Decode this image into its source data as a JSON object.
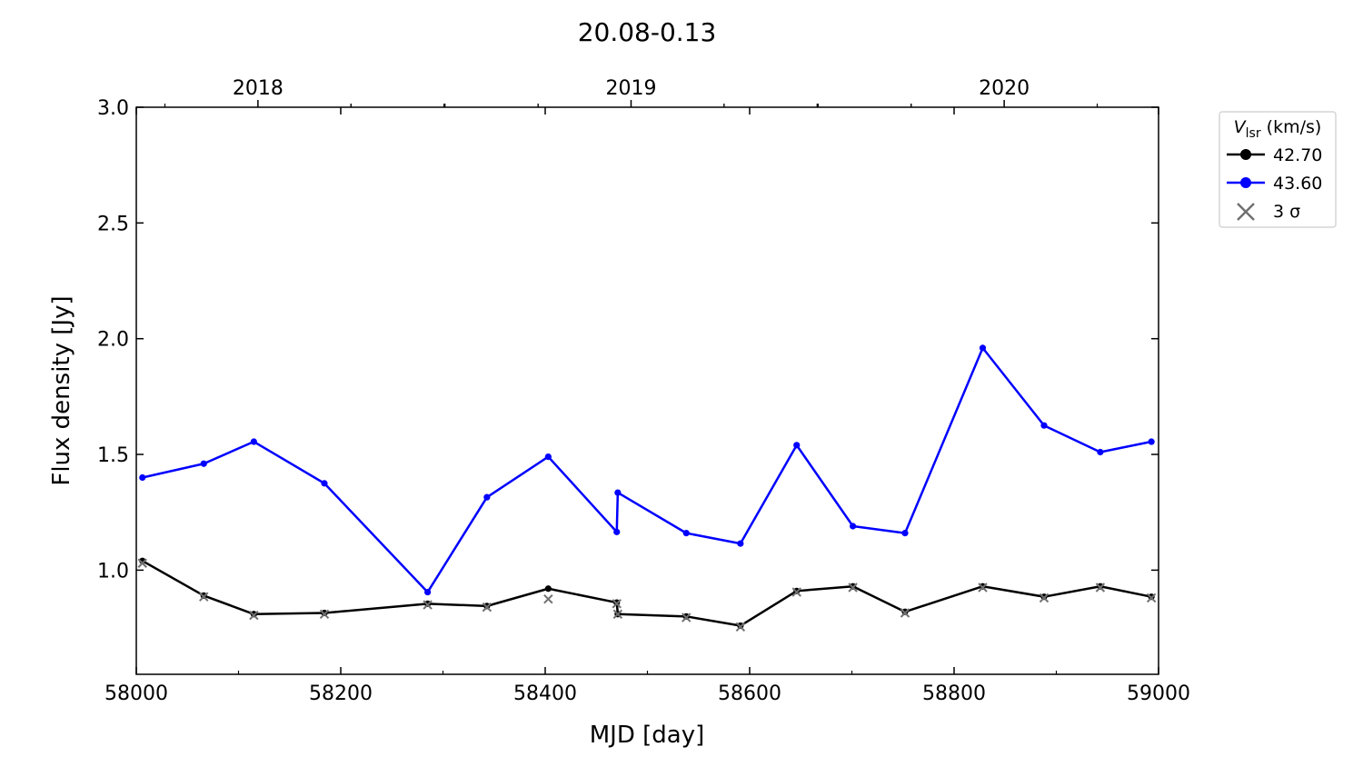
{
  "chart_data": {
    "type": "line",
    "title": "20.08-0.13",
    "xlabel": "MJD [day]",
    "ylabel": "Flux density [Jy]",
    "xlim": [
      58000,
      59000
    ],
    "ylim": [
      0.55,
      3.0
    ],
    "x_ticks": [
      58000,
      58200,
      58400,
      58600,
      58800,
      59000
    ],
    "y_ticks": [
      1.0,
      1.5,
      2.0,
      2.5,
      3.0
    ],
    "y_tick_labels": [
      "1.0",
      "1.5",
      "2.0",
      "2.5",
      "3.0"
    ],
    "top_axis": {
      "ticks": [
        {
          "label": "2018",
          "x": 58119
        },
        {
          "label": "2019",
          "x": 58484
        },
        {
          "label": "2020",
          "x": 58849
        }
      ]
    },
    "grid": false,
    "legend": {
      "title_main": "V",
      "title_sub": "lsr",
      "title_unit": " (km/s)",
      "placement": "outside-right",
      "sigma_label": "3 σ"
    },
    "series": [
      {
        "name": "42.70",
        "color": "#000000",
        "x": [
          58006,
          58066,
          58115,
          58184,
          58285,
          58343,
          58403,
          58470,
          58471,
          58538,
          58591,
          58646,
          58701,
          58752,
          58828,
          58888,
          58943,
          58993
        ],
        "y": [
          1.04,
          0.89,
          0.81,
          0.815,
          0.855,
          0.845,
          0.92,
          0.86,
          0.81,
          0.8,
          0.76,
          0.91,
          0.93,
          0.82,
          0.93,
          0.885,
          0.93,
          0.885
        ]
      },
      {
        "name": "43.60",
        "color": "#0000ff",
        "x": [
          58006,
          58066,
          58115,
          58184,
          58285,
          58343,
          58403,
          58470,
          58471,
          58538,
          58591,
          58646,
          58701,
          58752,
          58828,
          58888,
          58943,
          58993
        ],
        "y": [
          1.4,
          1.46,
          1.555,
          1.375,
          0.905,
          1.315,
          1.49,
          1.165,
          1.335,
          1.16,
          1.115,
          1.54,
          1.19,
          1.16,
          1.96,
          1.625,
          1.51,
          1.555
        ]
      }
    ],
    "sigma_points": {
      "name": "3 σ",
      "color": "#707070",
      "x": [
        58006,
        58066,
        58115,
        58184,
        58285,
        58343,
        58403,
        58470,
        58471,
        58538,
        58591,
        58646,
        58701,
        58752,
        58828,
        58888,
        58943,
        58993
      ],
      "y": [
        1.03,
        0.885,
        0.805,
        0.81,
        0.85,
        0.84,
        0.875,
        0.855,
        0.81,
        0.795,
        0.755,
        0.905,
        0.925,
        0.815,
        0.925,
        0.88,
        0.925,
        0.88
      ]
    }
  }
}
